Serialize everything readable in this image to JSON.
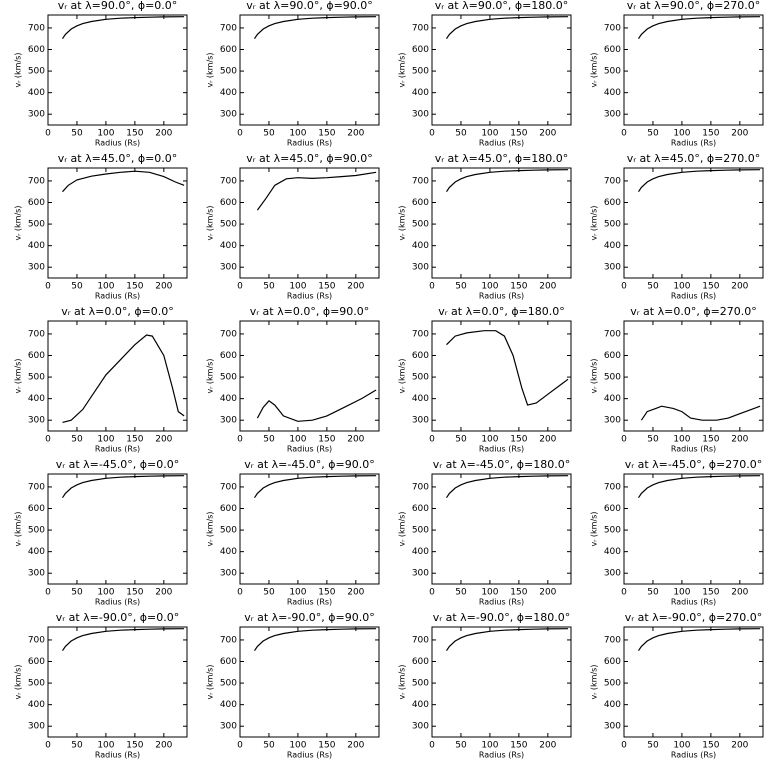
{
  "chart_data": [
    {
      "type": "line",
      "title": "vᵣ at λ=90.0°, ϕ=0.0°",
      "x_label": "Radius (Rs)",
      "y_label": "vᵣ (km/s)",
      "x": [
        25,
        30,
        40,
        50,
        60,
        75,
        100,
        125,
        150,
        175,
        200,
        235
      ],
      "values": [
        650,
        670,
        695,
        710,
        720,
        730,
        740,
        745,
        748,
        750,
        751,
        752
      ],
      "xlim": [
        0,
        240
      ],
      "ylim": [
        250,
        760
      ],
      "xticks": [
        0,
        50,
        100,
        150,
        200
      ],
      "yticks": [
        300,
        400,
        500,
        600,
        700
      ],
      "color": "#000000"
    },
    {
      "type": "line",
      "title": "vᵣ at λ=90.0°, ϕ=90.0°",
      "x_label": "Radius (Rs)",
      "y_label": "vᵣ (km/s)",
      "x": [
        25,
        30,
        40,
        50,
        60,
        75,
        100,
        125,
        150,
        175,
        200,
        235
      ],
      "values": [
        650,
        670,
        695,
        710,
        720,
        730,
        740,
        745,
        748,
        750,
        751,
        752
      ],
      "xlim": [
        0,
        240
      ],
      "ylim": [
        250,
        760
      ],
      "xticks": [
        0,
        50,
        100,
        150,
        200
      ],
      "yticks": [
        300,
        400,
        500,
        600,
        700
      ],
      "color": "#000000"
    },
    {
      "type": "line",
      "title": "vᵣ at λ=90.0°, ϕ=180.0°",
      "x_label": "Radius (Rs)",
      "y_label": "vᵣ (km/s)",
      "x": [
        25,
        30,
        40,
        50,
        60,
        75,
        100,
        125,
        150,
        175,
        200,
        235
      ],
      "values": [
        650,
        670,
        695,
        710,
        720,
        730,
        740,
        745,
        748,
        750,
        751,
        752
      ],
      "xlim": [
        0,
        240
      ],
      "ylim": [
        250,
        760
      ],
      "xticks": [
        0,
        50,
        100,
        150,
        200
      ],
      "yticks": [
        300,
        400,
        500,
        600,
        700
      ],
      "color": "#000000"
    },
    {
      "type": "line",
      "title": "vᵣ at λ=90.0°, ϕ=270.0°",
      "x_label": "Radius (Rs)",
      "y_label": "vᵣ (km/s)",
      "x": [
        25,
        30,
        40,
        50,
        60,
        75,
        100,
        125,
        150,
        175,
        200,
        235
      ],
      "values": [
        650,
        670,
        695,
        710,
        720,
        730,
        740,
        745,
        748,
        750,
        751,
        752
      ],
      "xlim": [
        0,
        240
      ],
      "ylim": [
        250,
        760
      ],
      "xticks": [
        0,
        50,
        100,
        150,
        200
      ],
      "yticks": [
        300,
        400,
        500,
        600,
        700
      ],
      "color": "#000000"
    },
    {
      "type": "line",
      "title": "vᵣ at λ=45.0°, ϕ=0.0°",
      "x_label": "Radius (Rs)",
      "y_label": "vᵣ (km/s)",
      "x": [
        25,
        35,
        50,
        75,
        100,
        125,
        150,
        175,
        200,
        220,
        235
      ],
      "values": [
        650,
        680,
        705,
        722,
        732,
        740,
        745,
        740,
        720,
        695,
        680
      ],
      "xlim": [
        0,
        240
      ],
      "ylim": [
        250,
        760
      ],
      "xticks": [
        0,
        50,
        100,
        150,
        200
      ],
      "yticks": [
        300,
        400,
        500,
        600,
        700
      ],
      "color": "#000000"
    },
    {
      "type": "line",
      "title": "vᵣ at λ=45.0°, ϕ=90.0°",
      "x_label": "Radius (Rs)",
      "y_label": "vᵣ (km/s)",
      "x": [
        30,
        45,
        60,
        80,
        100,
        125,
        150,
        175,
        200,
        235
      ],
      "values": [
        565,
        620,
        680,
        710,
        715,
        712,
        715,
        720,
        725,
        740
      ],
      "xlim": [
        0,
        240
      ],
      "ylim": [
        250,
        760
      ],
      "xticks": [
        0,
        50,
        100,
        150,
        200
      ],
      "yticks": [
        300,
        400,
        500,
        600,
        700
      ],
      "color": "#000000"
    },
    {
      "type": "line",
      "title": "vᵣ at λ=45.0°, ϕ=180.0°",
      "x_label": "Radius (Rs)",
      "y_label": "vᵣ (km/s)",
      "x": [
        25,
        30,
        40,
        50,
        60,
        75,
        100,
        125,
        150,
        175,
        200,
        235
      ],
      "values": [
        650,
        670,
        695,
        710,
        720,
        730,
        740,
        745,
        748,
        750,
        751,
        752
      ],
      "xlim": [
        0,
        240
      ],
      "ylim": [
        250,
        760
      ],
      "xticks": [
        0,
        50,
        100,
        150,
        200
      ],
      "yticks": [
        300,
        400,
        500,
        600,
        700
      ],
      "color": "#000000"
    },
    {
      "type": "line",
      "title": "vᵣ at λ=45.0°, ϕ=270.0°",
      "x_label": "Radius (Rs)",
      "y_label": "vᵣ (km/s)",
      "x": [
        25,
        30,
        40,
        50,
        60,
        75,
        100,
        125,
        150,
        175,
        200,
        235
      ],
      "values": [
        650,
        670,
        695,
        710,
        720,
        730,
        740,
        745,
        748,
        750,
        751,
        752
      ],
      "xlim": [
        0,
        240
      ],
      "ylim": [
        250,
        760
      ],
      "xticks": [
        0,
        50,
        100,
        150,
        200
      ],
      "yticks": [
        300,
        400,
        500,
        600,
        700
      ],
      "color": "#000000"
    },
    {
      "type": "line",
      "title": "vᵣ at λ=0.0°, ϕ=0.0°",
      "x_label": "Radius (Rs)",
      "y_label": "vᵣ (km/s)",
      "x": [
        25,
        40,
        60,
        80,
        100,
        125,
        150,
        170,
        180,
        200,
        215,
        225,
        235
      ],
      "values": [
        290,
        300,
        350,
        430,
        510,
        580,
        650,
        695,
        690,
        600,
        450,
        340,
        320
      ],
      "xlim": [
        0,
        240
      ],
      "ylim": [
        250,
        760
      ],
      "xticks": [
        0,
        50,
        100,
        150,
        200
      ],
      "yticks": [
        300,
        400,
        500,
        600,
        700
      ],
      "color": "#000000"
    },
    {
      "type": "line",
      "title": "vᵣ at λ=0.0°, ϕ=90.0°",
      "x_label": "Radius (Rs)",
      "y_label": "vᵣ (km/s)",
      "x": [
        30,
        40,
        50,
        60,
        75,
        100,
        125,
        150,
        180,
        210,
        235
      ],
      "values": [
        310,
        360,
        390,
        370,
        320,
        295,
        300,
        320,
        360,
        400,
        440
      ],
      "xlim": [
        0,
        240
      ],
      "ylim": [
        250,
        760
      ],
      "xticks": [
        0,
        50,
        100,
        150,
        200
      ],
      "yticks": [
        300,
        400,
        500,
        600,
        700
      ],
      "color": "#000000"
    },
    {
      "type": "line",
      "title": "vᵣ at λ=0.0°, ϕ=180.0°",
      "x_label": "Radius (Rs)",
      "y_label": "vᵣ (km/s)",
      "x": [
        25,
        40,
        60,
        90,
        110,
        125,
        140,
        155,
        165,
        180,
        200,
        225,
        235
      ],
      "values": [
        650,
        690,
        705,
        715,
        715,
        690,
        600,
        450,
        370,
        380,
        420,
        470,
        490
      ],
      "xlim": [
        0,
        240
      ],
      "ylim": [
        250,
        760
      ],
      "xticks": [
        0,
        50,
        100,
        150,
        200
      ],
      "yticks": [
        300,
        400,
        500,
        600,
        700
      ],
      "color": "#000000"
    },
    {
      "type": "line",
      "title": "vᵣ at λ=0.0°, ϕ=270.0°",
      "x_label": "Radius (Rs)",
      "y_label": "vᵣ (km/s)",
      "x": [
        30,
        40,
        55,
        65,
        85,
        100,
        115,
        135,
        160,
        180,
        200,
        220,
        235
      ],
      "values": [
        300,
        340,
        355,
        365,
        355,
        340,
        310,
        300,
        300,
        310,
        330,
        350,
        365
      ],
      "xlim": [
        0,
        240
      ],
      "ylim": [
        250,
        760
      ],
      "xticks": [
        0,
        50,
        100,
        150,
        200
      ],
      "yticks": [
        300,
        400,
        500,
        600,
        700
      ],
      "color": "#000000"
    },
    {
      "type": "line",
      "title": "vᵣ at λ=-45.0°, ϕ=0.0°",
      "x_label": "Radius (Rs)",
      "y_label": "vᵣ (km/s)",
      "x": [
        25,
        30,
        40,
        50,
        60,
        75,
        100,
        125,
        150,
        175,
        200,
        235
      ],
      "values": [
        650,
        670,
        695,
        710,
        720,
        730,
        740,
        745,
        748,
        750,
        751,
        752
      ],
      "xlim": [
        0,
        240
      ],
      "ylim": [
        250,
        760
      ],
      "xticks": [
        0,
        50,
        100,
        150,
        200
      ],
      "yticks": [
        300,
        400,
        500,
        600,
        700
      ],
      "color": "#000000"
    },
    {
      "type": "line",
      "title": "vᵣ at λ=-45.0°, ϕ=90.0°",
      "x_label": "Radius (Rs)",
      "y_label": "vᵣ (km/s)",
      "x": [
        25,
        30,
        40,
        50,
        60,
        75,
        100,
        125,
        150,
        175,
        200,
        235
      ],
      "values": [
        650,
        670,
        695,
        710,
        720,
        730,
        740,
        745,
        748,
        750,
        751,
        752
      ],
      "xlim": [
        0,
        240
      ],
      "ylim": [
        250,
        760
      ],
      "xticks": [
        0,
        50,
        100,
        150,
        200
      ],
      "yticks": [
        300,
        400,
        500,
        600,
        700
      ],
      "color": "#000000"
    },
    {
      "type": "line",
      "title": "vᵣ at λ=-45.0°, ϕ=180.0°",
      "x_label": "Radius (Rs)",
      "y_label": "vᵣ (km/s)",
      "x": [
        25,
        30,
        40,
        50,
        60,
        75,
        100,
        125,
        150,
        175,
        200,
        235
      ],
      "values": [
        650,
        670,
        695,
        710,
        720,
        730,
        740,
        745,
        748,
        750,
        751,
        752
      ],
      "xlim": [
        0,
        240
      ],
      "ylim": [
        250,
        760
      ],
      "xticks": [
        0,
        50,
        100,
        150,
        200
      ],
      "yticks": [
        300,
        400,
        500,
        600,
        700
      ],
      "color": "#000000"
    },
    {
      "type": "line",
      "title": "vᵣ at λ=-45.0°, ϕ=270.0°",
      "x_label": "Radius (Rs)",
      "y_label": "vᵣ (km/s)",
      "x": [
        25,
        30,
        40,
        50,
        60,
        75,
        100,
        125,
        150,
        175,
        200,
        235
      ],
      "values": [
        650,
        670,
        695,
        710,
        720,
        730,
        740,
        745,
        748,
        750,
        751,
        752
      ],
      "xlim": [
        0,
        240
      ],
      "ylim": [
        250,
        760
      ],
      "xticks": [
        0,
        50,
        100,
        150,
        200
      ],
      "yticks": [
        300,
        400,
        500,
        600,
        700
      ],
      "color": "#000000"
    },
    {
      "type": "line",
      "title": "vᵣ at λ=-90.0°, ϕ=0.0°",
      "x_label": "Radius (Rs)",
      "y_label": "vᵣ (km/s)",
      "x": [
        25,
        30,
        40,
        50,
        60,
        75,
        100,
        125,
        150,
        175,
        200,
        235
      ],
      "values": [
        650,
        670,
        695,
        710,
        720,
        730,
        740,
        745,
        748,
        750,
        751,
        752
      ],
      "xlim": [
        0,
        240
      ],
      "ylim": [
        250,
        760
      ],
      "xticks": [
        0,
        50,
        100,
        150,
        200
      ],
      "yticks": [
        300,
        400,
        500,
        600,
        700
      ],
      "color": "#000000"
    },
    {
      "type": "line",
      "title": "vᵣ at λ=-90.0°, ϕ=90.0°",
      "x_label": "Radius (Rs)",
      "y_label": "vᵣ (km/s)",
      "x": [
        25,
        30,
        40,
        50,
        60,
        75,
        100,
        125,
        150,
        175,
        200,
        235
      ],
      "values": [
        650,
        670,
        695,
        710,
        720,
        730,
        740,
        745,
        748,
        750,
        751,
        752
      ],
      "xlim": [
        0,
        240
      ],
      "ylim": [
        250,
        760
      ],
      "xticks": [
        0,
        50,
        100,
        150,
        200
      ],
      "yticks": [
        300,
        400,
        500,
        600,
        700
      ],
      "color": "#000000"
    },
    {
      "type": "line",
      "title": "vᵣ at λ=-90.0°, ϕ=180.0°",
      "x_label": "Radius (Rs)",
      "y_label": "vᵣ (km/s)",
      "x": [
        25,
        30,
        40,
        50,
        60,
        75,
        100,
        125,
        150,
        175,
        200,
        235
      ],
      "values": [
        650,
        670,
        695,
        710,
        720,
        730,
        740,
        745,
        748,
        750,
        751,
        752
      ],
      "xlim": [
        0,
        240
      ],
      "ylim": [
        250,
        760
      ],
      "xticks": [
        0,
        50,
        100,
        150,
        200
      ],
      "yticks": [
        300,
        400,
        500,
        600,
        700
      ],
      "color": "#000000"
    },
    {
      "type": "line",
      "title": "vᵣ at λ=-90.0°, ϕ=270.0°",
      "x_label": "Radius (Rs)",
      "y_label": "vᵣ (km/s)",
      "x": [
        25,
        30,
        40,
        50,
        60,
        75,
        100,
        125,
        150,
        175,
        200,
        235
      ],
      "values": [
        650,
        670,
        695,
        710,
        720,
        730,
        740,
        745,
        748,
        750,
        751,
        752
      ],
      "xlim": [
        0,
        240
      ],
      "ylim": [
        250,
        760
      ],
      "xticks": [
        0,
        50,
        100,
        150,
        200
      ],
      "yticks": [
        300,
        400,
        500,
        600,
        700
      ],
      "color": "#000000"
    }
  ]
}
